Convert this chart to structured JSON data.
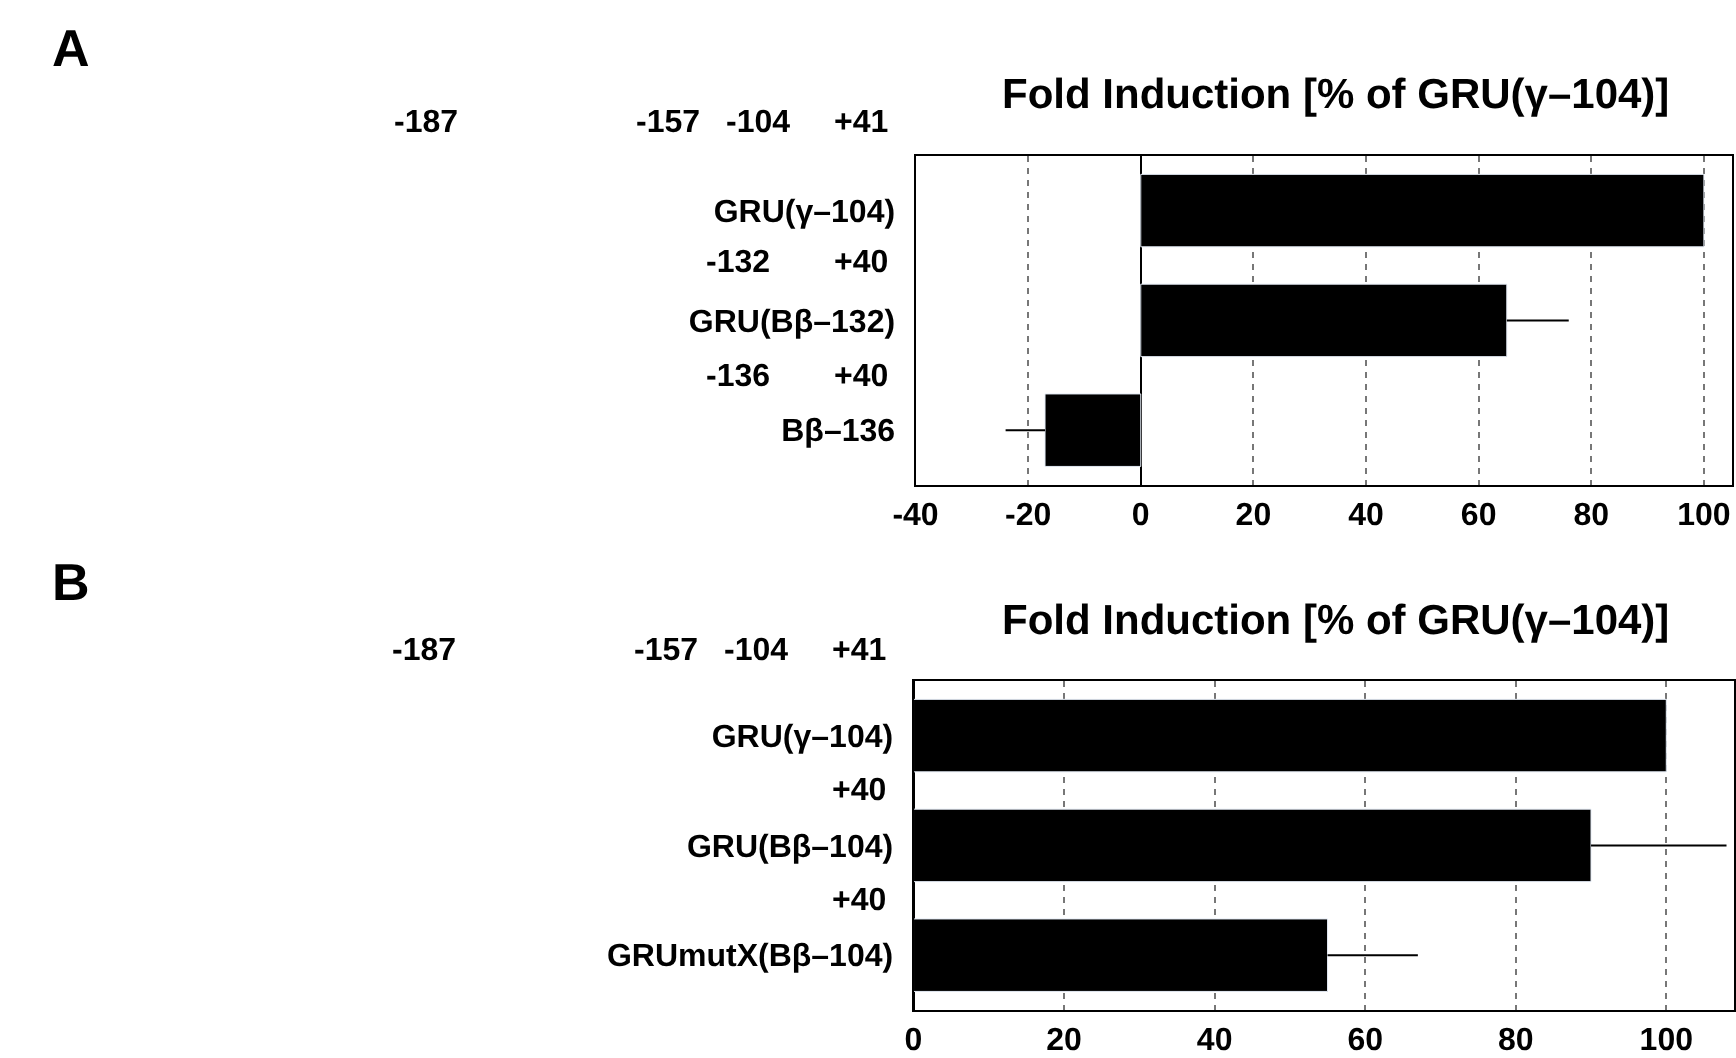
{
  "chart_data": [
    {
      "type": "bar",
      "orientation": "horizontal",
      "title": "Fold Induction [% of GRU(γ–104)]",
      "categories": [
        "GRU(γ–104)",
        "GRU(Bβ–132)",
        "Bβ–136"
      ],
      "values": [
        100,
        65,
        -17
      ],
      "errors": [
        null,
        11,
        7
      ],
      "color": "#000000",
      "xlim": [
        -40,
        105
      ],
      "xticks": [
        -40,
        -20,
        0,
        20,
        40,
        60,
        80,
        100
      ],
      "grid": "x",
      "legend": false,
      "annotations": [
        "A",
        "-187",
        "-157",
        "-104",
        "+41",
        "-132",
        "+40",
        "-136",
        "+40"
      ]
    },
    {
      "type": "bar",
      "orientation": "horizontal",
      "title": "Fold Induction [% of GRU(γ–104)]",
      "categories": [
        "GRU(γ–104)",
        "GRU(Bβ–104)",
        "GRUmutX(Bβ–104)"
      ],
      "values": [
        100,
        90,
        55
      ],
      "errors": [
        null,
        18,
        12
      ],
      "color": "#000000",
      "xlim": [
        0,
        109
      ],
      "xticks": [
        0,
        20,
        40,
        60,
        80,
        100
      ],
      "grid": "x",
      "legend": false,
      "annotations": [
        "B",
        "-187",
        "-157",
        "-104",
        "+41",
        "+40",
        "+40"
      ]
    }
  ]
}
